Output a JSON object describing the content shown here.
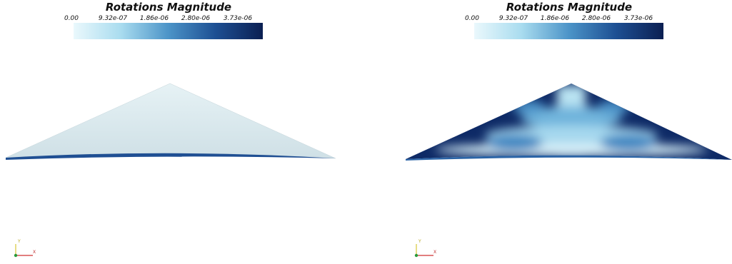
{
  "panels": [
    {
      "colorbar": {
        "title": "Rotations Magnitude",
        "ticks": [
          "0.00",
          "9.32e-07",
          "1.86e-06",
          "2.80e-06",
          "3.73e-06"
        ]
      },
      "axes": {
        "y": "Y",
        "x": "X"
      }
    },
    {
      "colorbar": {
        "title": "Rotations Magnitude",
        "ticks": [
          "0.00",
          "9.32e-07",
          "1.86e-06",
          "2.80e-06",
          "3.73e-06"
        ]
      },
      "axes": {
        "y": "Y",
        "x": "X"
      }
    }
  ]
}
